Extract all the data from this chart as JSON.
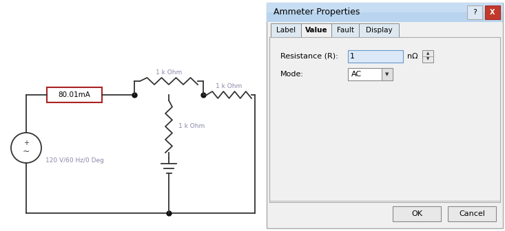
{
  "bg_color": "#ffffff",
  "circuit_bg": "#ffffff",
  "dialog_title": "Ammeter Properties",
  "tab_labels": [
    "Label",
    "Value",
    "Fault",
    "Display"
  ],
  "active_tab": "Value",
  "resistance_label": "Resistance (R):",
  "resistance_value": "1",
  "resistance_unit": "nΩ",
  "mode_label": "Mode:",
  "mode_value": "AC",
  "ammeter_reading": "80.01mA",
  "source_label": "120 V/60 Hz/0 Deg",
  "r1_label": "1 k Ohm",
  "r2_label": "1 k Ohm",
  "r3_label": "1 k Ohm",
  "ok_btn": "OK",
  "cancel_btn": "Cancel",
  "line_color": "#333333",
  "ammeter_box_color": "#aa2222",
  "node_color": "#111111",
  "label_color": "#8888aa",
  "source_color": "#333333"
}
